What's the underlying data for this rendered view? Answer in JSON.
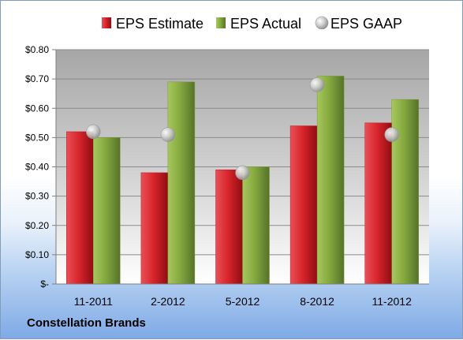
{
  "footer": {
    "company": "Constellation Brands"
  },
  "colors": {
    "estimate": "#c0181e",
    "actual": "#7a9a35",
    "gaap": "#a9a9a9"
  },
  "chart_data": {
    "type": "bar",
    "categories": [
      "11-2011",
      "2-2012",
      "5-2012",
      "8-2012",
      "11-2012"
    ],
    "series": [
      {
        "name": "EPS Estimate",
        "values": [
          0.52,
          0.38,
          0.39,
          0.54,
          0.55
        ]
      },
      {
        "name": "EPS Actual",
        "values": [
          0.5,
          0.69,
          0.4,
          0.71,
          0.63
        ]
      },
      {
        "name": "EPS GAAP",
        "type": "scatter",
        "values": [
          0.52,
          0.51,
          0.38,
          0.68,
          0.51
        ]
      }
    ],
    "yticks": [
      "$-",
      "$0.10",
      "$0.20",
      "$0.30",
      "$0.40",
      "$0.50",
      "$0.60",
      "$0.70",
      "$0.80"
    ],
    "ylim": [
      0,
      0.8
    ],
    "grid": true,
    "legend": "top"
  }
}
